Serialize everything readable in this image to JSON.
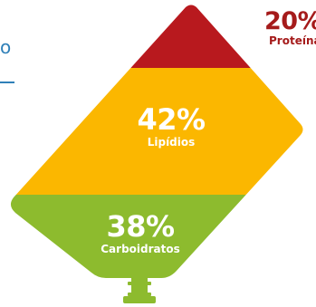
{
  "colors": {
    "proteina": "#b8191e",
    "lipidios": "#fbb700",
    "carboidratos": "#8dbb2e",
    "stem": "#8dbb2e",
    "accent_blue": "#2f80b8",
    "proteina_text": "#a51b1b"
  },
  "left_edge": {
    "fragment": "o"
  },
  "segments": [
    {
      "value": "20%",
      "label": "Proteína"
    },
    {
      "value": "42%",
      "label": "Lipídios"
    },
    {
      "value": "38%",
      "label": "Carboidratos"
    }
  ]
}
